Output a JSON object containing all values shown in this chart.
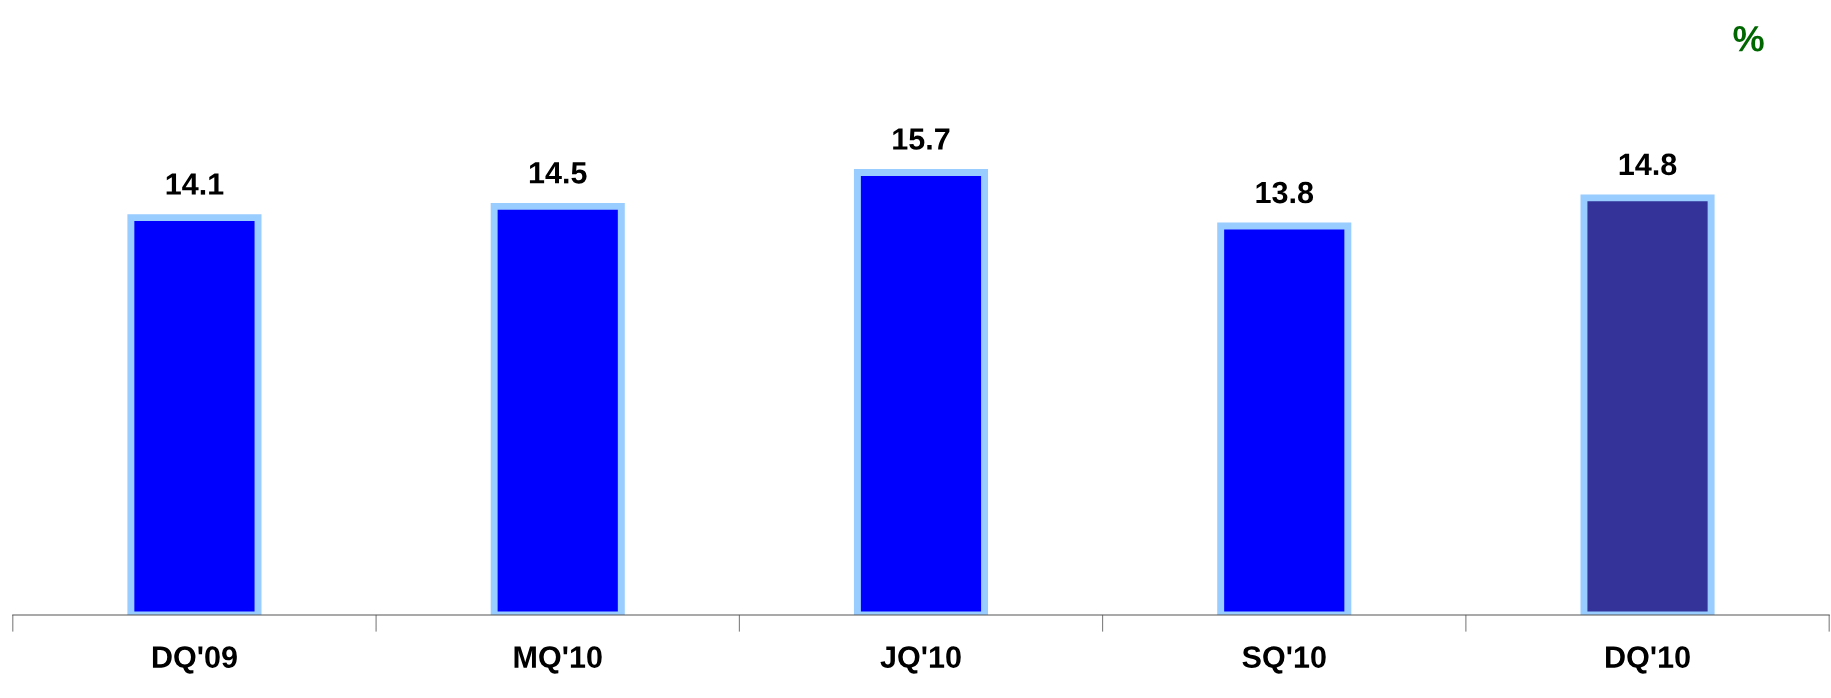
{
  "chart_data": {
    "type": "bar",
    "categories": [
      "DQ'09",
      "MQ'10",
      "JQ'10",
      "SQ'10",
      "DQ'10"
    ],
    "values": [
      14.1,
      14.5,
      15.7,
      13.8,
      14.8
    ],
    "colors": [
      "#0000ff",
      "#0000ff",
      "#0000ff",
      "#0000ff",
      "#333399"
    ],
    "data_labels": true,
    "grid": false,
    "legend": false,
    "annotations": [
      "%"
    ]
  }
}
